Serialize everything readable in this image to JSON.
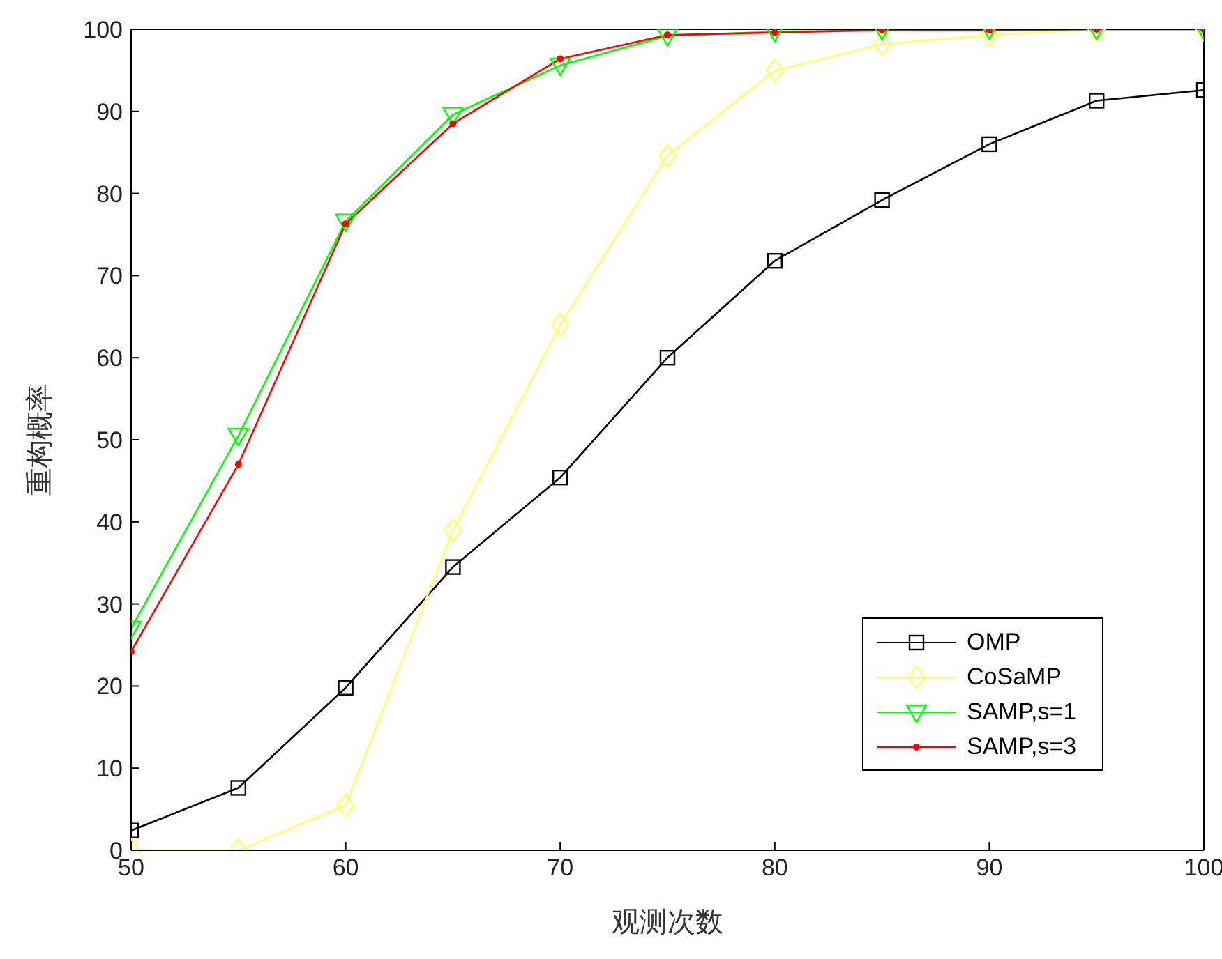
{
  "chart_data": {
    "type": "line",
    "xlabel": "观测次数",
    "ylabel": "重构概率",
    "x": [
      50,
      55,
      60,
      65,
      70,
      75,
      80,
      85,
      90,
      95,
      100
    ],
    "xlim": [
      50,
      100
    ],
    "xticks": [
      50,
      60,
      70,
      80,
      90,
      100
    ],
    "ylim": [
      0,
      100
    ],
    "yticks": [
      0,
      10,
      20,
      30,
      40,
      50,
      60,
      70,
      80,
      90,
      100
    ],
    "grid": false,
    "legend": "bottom right",
    "line_style": "solid",
    "series": [
      {
        "name": "OMP",
        "color": "#000000",
        "marker": "square",
        "values": [
          2.4,
          7.6,
          19.8,
          34.5,
          45.4,
          60,
          71.8,
          79.2,
          86,
          91.3,
          92.6
        ]
      },
      {
        "name": "CoSaMP",
        "color": "#ffff66",
        "marker": "diamond",
        "values": [
          0,
          0,
          5.5,
          39,
          64,
          84.6,
          95,
          98.2,
          99.3,
          100,
          100
        ]
      },
      {
        "name": "SAMP,s=1",
        "color": "#00ff00",
        "marker": "triangle",
        "values": [
          27,
          50.5,
          76.6,
          89.6,
          95.6,
          99.2,
          99.7,
          99.9,
          100,
          100,
          100
        ]
      },
      {
        "name": "SAMP,s=3",
        "color": "#ff0000",
        "marker": "circle",
        "values": [
          24.2,
          47,
          76.3,
          88.5,
          96.4,
          99.3,
          99.6,
          99.9,
          99.9,
          100,
          100
        ]
      }
    ]
  }
}
